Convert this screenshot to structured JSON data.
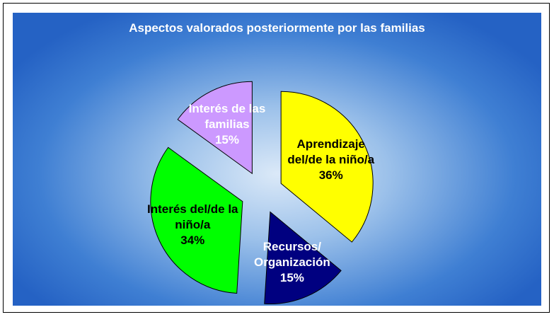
{
  "chart_data": {
    "type": "pie",
    "title": "Aspectos valorados posteriormente por las familias",
    "categories": [
      "Aprendizaje del/de la niño/a",
      "Recursos/ Organización",
      "Interés del/de la niño/a",
      "Interés de las familias"
    ],
    "values": [
      36,
      15,
      34,
      15
    ],
    "value_labels": [
      "36%",
      "15%",
      "34%",
      "15%"
    ],
    "colors": [
      "#ffff00",
      "#000080",
      "#00ff00",
      "#cc99ff"
    ]
  }
}
